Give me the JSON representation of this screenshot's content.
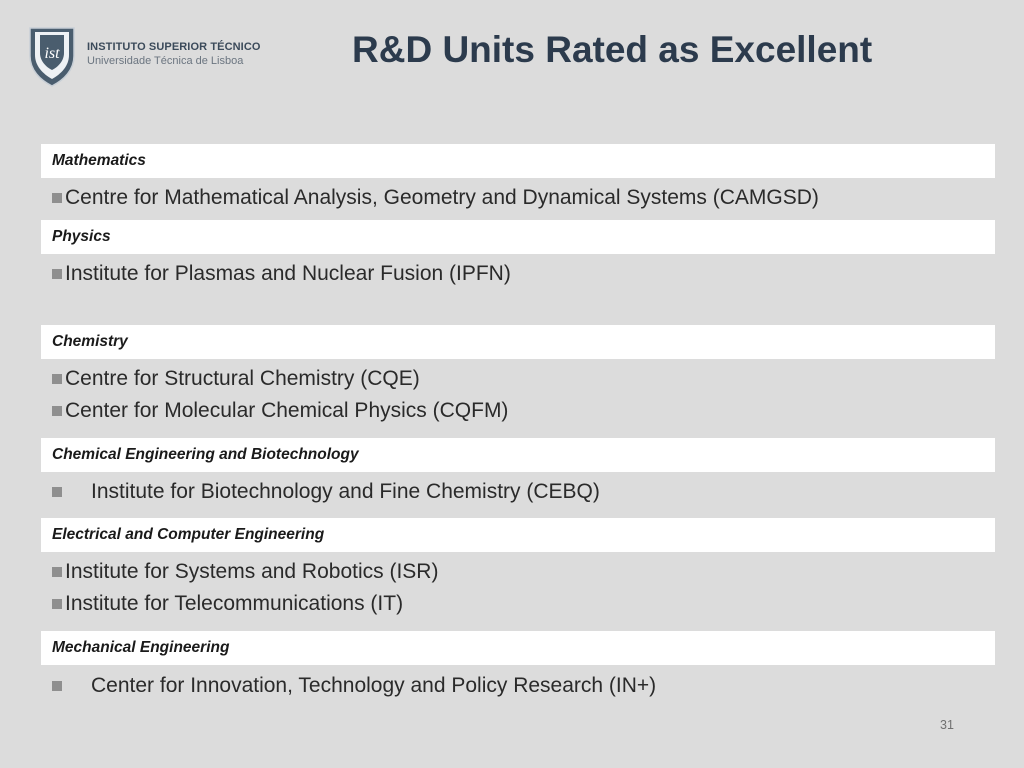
{
  "header": {
    "institution_name": "INSTITUTO SUPERIOR TÉCNICO",
    "institution_subtitle": "Universidade Técnica de Lisboa",
    "logo_letters": "ist",
    "title": "R&D Units Rated as Excellent"
  },
  "sections": [
    {
      "label": "Mathematics",
      "items": [
        "Centre for Mathematical Analysis, Geometry and Dynamical Systems (CAMGSD)"
      ]
    },
    {
      "label": "Physics",
      "items": [
        "Institute for Plasmas and Nuclear Fusion (IPFN)"
      ]
    },
    {
      "label": "Chemistry",
      "items": [
        "Centre for Structural Chemistry (CQE)",
        "Center for Molecular Chemical Physics (CQFM)"
      ]
    },
    {
      "label": "Chemical Engineering and Biotechnology",
      "items": [
        "Institute for Biotechnology and Fine Chemistry (CEBQ)"
      ]
    },
    {
      "label": "Electrical and Computer Engineering",
      "items": [
        "Institute for Systems and Robotics (ISR)",
        "Institute for Telecommunications (IT)"
      ]
    },
    {
      "label": "Mechanical Engineering",
      "items": [
        "Center for Innovation, Technology and Policy Research (IN+)"
      ]
    }
  ],
  "page_number": "31",
  "colors": {
    "background": "#dcdcdc",
    "title": "#2c3b4d",
    "logo_shield": "#4a5d6e"
  },
  "icons": {
    "logo": "ist-shield-logo",
    "bullet": "square-bullet"
  }
}
